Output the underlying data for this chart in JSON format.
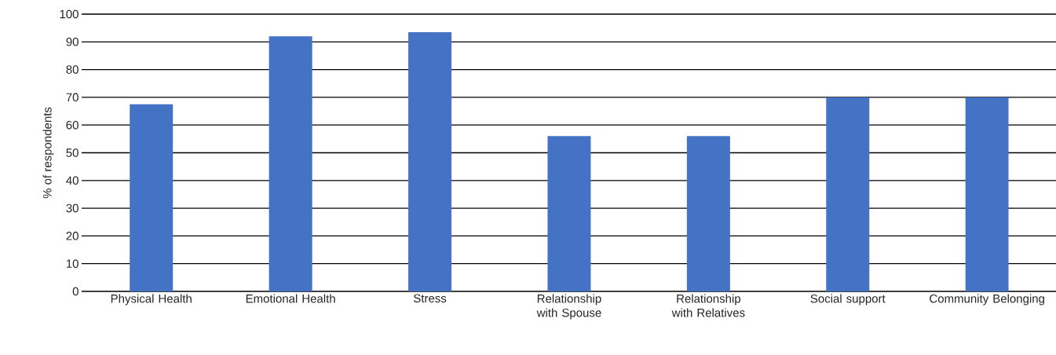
{
  "chart_data": {
    "type": "bar",
    "ylabel": "% of respondents",
    "categories": [
      "Physical Health",
      "Emotional Health",
      "Stress",
      "Relationship with Spouse",
      "Relationship with Relatives",
      "Social support",
      "Community Belonging"
    ],
    "values": [
      67.5,
      92,
      93.5,
      56,
      56,
      70,
      70
    ],
    "color": "#4472c4",
    "ylim": [
      0,
      100
    ],
    "yticks": [
      0,
      10,
      20,
      30,
      40,
      50,
      60,
      70,
      80,
      90,
      100
    ],
    "grid": "y"
  }
}
